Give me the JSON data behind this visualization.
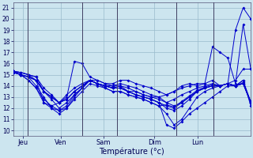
{
  "xlabel": "Température (°c)",
  "ylim": [
    9.5,
    21.5
  ],
  "bg_color": "#cce5ef",
  "line_color": "#0000cc",
  "grid_color": "#99bbcc",
  "series": [
    [
      15.3,
      15.0,
      14.8,
      14.5,
      12.5,
      12.2,
      12.5,
      13.2,
      13.8,
      14.2,
      14.5,
      14.5,
      14.2,
      14.0,
      14.0,
      13.5,
      13.5,
      13.2,
      13.0,
      13.0,
      13.2,
      13.5,
      14.0,
      14.2,
      14.0,
      14.2,
      14.5,
      14.0,
      14.2,
      19.0,
      21.0,
      20.0
    ],
    [
      15.3,
      15.2,
      15.0,
      14.8,
      13.5,
      13.0,
      12.5,
      13.0,
      16.2,
      16.0,
      14.8,
      14.5,
      14.2,
      14.2,
      14.5,
      14.5,
      14.2,
      14.0,
      13.8,
      13.5,
      13.2,
      13.5,
      13.8,
      14.0,
      14.2,
      14.2,
      17.5,
      17.0,
      16.5,
      14.2,
      19.5,
      15.5
    ],
    [
      15.3,
      15.2,
      15.0,
      14.5,
      13.5,
      12.8,
      12.0,
      12.5,
      13.2,
      13.8,
      14.5,
      14.2,
      14.0,
      14.0,
      14.2,
      14.0,
      13.8,
      13.5,
      13.2,
      13.0,
      12.5,
      12.8,
      13.2,
      13.5,
      13.8,
      14.0,
      14.2,
      14.0,
      14.2,
      14.5,
      15.5,
      15.5
    ],
    [
      15.3,
      15.0,
      14.8,
      14.0,
      13.0,
      12.0,
      11.8,
      12.0,
      13.0,
      13.8,
      14.5,
      14.2,
      14.0,
      13.8,
      13.8,
      13.5,
      13.2,
      13.0,
      12.8,
      12.5,
      10.5,
      10.2,
      10.8,
      11.5,
      12.0,
      12.5,
      13.0,
      13.5,
      14.0,
      14.0,
      14.2,
      12.5
    ],
    [
      15.2,
      15.0,
      14.5,
      13.8,
      12.5,
      12.0,
      11.5,
      12.0,
      12.8,
      13.5,
      14.2,
      14.0,
      13.8,
      13.5,
      13.5,
      13.2,
      13.0,
      12.8,
      12.5,
      12.2,
      11.5,
      10.5,
      11.0,
      12.0,
      13.0,
      13.5,
      13.8,
      14.0,
      14.2,
      14.0,
      14.2,
      12.5
    ],
    [
      15.2,
      15.0,
      14.5,
      13.8,
      12.8,
      12.2,
      11.8,
      12.2,
      13.2,
      13.8,
      14.5,
      14.2,
      14.0,
      13.8,
      14.0,
      13.8,
      13.5,
      13.2,
      13.0,
      12.8,
      12.5,
      12.2,
      12.5,
      13.0,
      13.5,
      13.8,
      14.0,
      14.0,
      14.2,
      14.0,
      14.5,
      12.2
    ],
    [
      15.3,
      15.2,
      15.0,
      14.8,
      13.8,
      13.2,
      12.5,
      12.8,
      13.5,
      14.0,
      14.5,
      14.2,
      14.0,
      13.8,
      13.8,
      13.5,
      13.2,
      13.0,
      12.8,
      12.5,
      12.2,
      12.0,
      12.5,
      13.0,
      13.5,
      13.8,
      14.0,
      14.0,
      14.2,
      14.0,
      14.5,
      12.5
    ],
    [
      15.3,
      15.0,
      14.8,
      14.5,
      13.5,
      13.0,
      12.5,
      12.8,
      13.5,
      14.0,
      14.5,
      14.2,
      14.0,
      13.8,
      13.8,
      13.5,
      13.2,
      13.0,
      12.8,
      12.5,
      12.0,
      11.8,
      12.2,
      12.8,
      13.5,
      13.8,
      14.0,
      14.0,
      14.2,
      14.0,
      14.2,
      12.5
    ],
    [
      15.2,
      15.0,
      14.8,
      14.5,
      13.5,
      13.0,
      12.5,
      12.8,
      13.5,
      14.0,
      14.5,
      14.2,
      13.8,
      13.5,
      13.5,
      13.2,
      13.0,
      12.8,
      12.5,
      12.2,
      12.3,
      12.1,
      12.6,
      13.1,
      13.6,
      13.9,
      14.1,
      14.0,
      14.2,
      14.0,
      14.3,
      12.6
    ]
  ],
  "day_names": [
    "Jeu",
    "Ven",
    "Sam",
    "Dim",
    "Lun"
  ],
  "yticks": [
    10,
    11,
    12,
    13,
    14,
    15,
    16,
    17,
    18,
    19,
    20,
    21
  ]
}
